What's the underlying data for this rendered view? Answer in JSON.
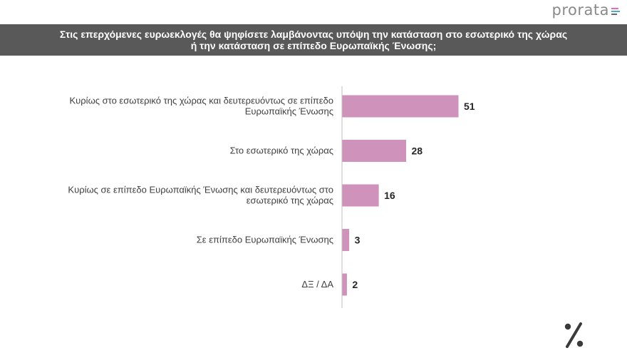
{
  "brand": {
    "name": "prorata",
    "mark_colors": [
      "#e16fb2",
      "#4aa8d8",
      "#6a6a6a"
    ]
  },
  "header": {
    "title_line1": "Στις επερχόμενες ευρωεκλογές θα ψηφίσετε λαμβάνοντας υπόψη την κατάσταση στο εσωτερικό της χώρας",
    "title_line2": "ή την κατάσταση σε επίπεδο Ευρωπαϊκής Ένωσης;"
  },
  "chart_data": {
    "type": "bar",
    "orientation": "horizontal",
    "title": "",
    "xlabel": "",
    "ylabel": "",
    "categories": [
      [
        "Κυρίως στο εσωτερικό της χώρας και δευτερευόντως σε επίπεδο",
        "Ευρωπαϊκής Ένωσης"
      ],
      [
        "Στο εσωτερικό της χώρας"
      ],
      [
        "Κυρίως σε επίπεδο Ευρωπαϊκής Ένωσης και δευτερευόντως στο",
        "εσωτερικό της χώρας"
      ],
      [
        "Σε επίπεδο Ευρωπαϊκής Ένωσης"
      ],
      [
        "ΔΞ / ΔΑ"
      ]
    ],
    "values": [
      51,
      28,
      16,
      3,
      2
    ],
    "xlim": [
      0,
      100
    ],
    "bar_color": "#cf92ba",
    "grid": false,
    "legend": "none"
  },
  "footer": {
    "mark": "percent-icon",
    "mark_color": "#3a3a3a"
  }
}
